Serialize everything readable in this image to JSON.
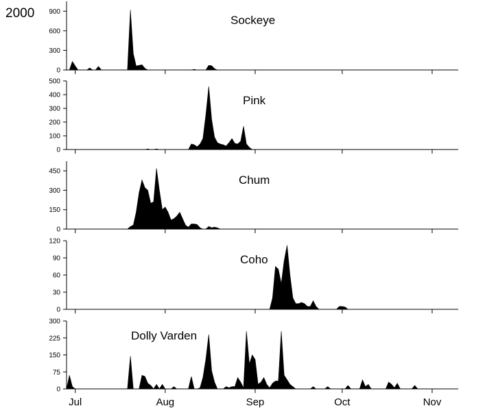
{
  "year_label": "2000",
  "colors": {
    "fill": "#000000",
    "axis": "#000000",
    "background": "#ffffff"
  },
  "chart_data": {
    "type": "area",
    "x_unit": "date (2000)",
    "x_range": [
      "2000-06-28",
      "2000-11-10"
    ],
    "x_ticks": [
      {
        "label": "Jul",
        "date": "2000-07-01"
      },
      {
        "label": "Aug",
        "date": "2000-08-01"
      },
      {
        "label": "Sep",
        "date": "2000-09-01"
      },
      {
        "label": "Oct",
        "date": "2000-10-01"
      },
      {
        "label": "Nov",
        "date": "2000-11-01"
      }
    ],
    "panels": [
      {
        "name": "Sockeye",
        "ylim": [
          0,
          1050
        ],
        "y_ticks": [
          0,
          300,
          600,
          900
        ],
        "points": [
          [
            "2000-06-29",
            0
          ],
          [
            "2000-06-30",
            130
          ],
          [
            "2000-07-01",
            60
          ],
          [
            "2000-07-02",
            0
          ],
          [
            "2000-07-05",
            0
          ],
          [
            "2000-07-06",
            30
          ],
          [
            "2000-07-07",
            0
          ],
          [
            "2000-07-08",
            0
          ],
          [
            "2000-07-09",
            55
          ],
          [
            "2000-07-10",
            0
          ],
          [
            "2000-07-19",
            0
          ],
          [
            "2000-07-20",
            920
          ],
          [
            "2000-07-21",
            250
          ],
          [
            "2000-07-22",
            60
          ],
          [
            "2000-07-23",
            70
          ],
          [
            "2000-07-24",
            80
          ],
          [
            "2000-07-25",
            25
          ],
          [
            "2000-07-26",
            0
          ],
          [
            "2000-08-10",
            0
          ],
          [
            "2000-08-11",
            10
          ],
          [
            "2000-08-12",
            0
          ],
          [
            "2000-08-15",
            0
          ],
          [
            "2000-08-16",
            70
          ],
          [
            "2000-08-17",
            65
          ],
          [
            "2000-08-18",
            20
          ],
          [
            "2000-08-19",
            0
          ]
        ]
      },
      {
        "name": "Pink",
        "ylim": [
          0,
          500
        ],
        "y_ticks": [
          0,
          100,
          200,
          300,
          400,
          500
        ],
        "points": [
          [
            "2000-07-25",
            0
          ],
          [
            "2000-07-26",
            5
          ],
          [
            "2000-07-27",
            0
          ],
          [
            "2000-07-28",
            0
          ],
          [
            "2000-07-29",
            5
          ],
          [
            "2000-07-30",
            0
          ],
          [
            "2000-08-09",
            0
          ],
          [
            "2000-08-10",
            40
          ],
          [
            "2000-08-11",
            35
          ],
          [
            "2000-08-12",
            20
          ],
          [
            "2000-08-13",
            40
          ],
          [
            "2000-08-14",
            80
          ],
          [
            "2000-08-15",
            250
          ],
          [
            "2000-08-16",
            460
          ],
          [
            "2000-08-17",
            220
          ],
          [
            "2000-08-18",
            90
          ],
          [
            "2000-08-19",
            50
          ],
          [
            "2000-08-20",
            40
          ],
          [
            "2000-08-21",
            35
          ],
          [
            "2000-08-22",
            25
          ],
          [
            "2000-08-23",
            50
          ],
          [
            "2000-08-24",
            80
          ],
          [
            "2000-08-25",
            45
          ],
          [
            "2000-08-26",
            40
          ],
          [
            "2000-08-27",
            60
          ],
          [
            "2000-08-28",
            170
          ],
          [
            "2000-08-29",
            40
          ],
          [
            "2000-08-30",
            15
          ],
          [
            "2000-08-31",
            0
          ]
        ]
      },
      {
        "name": "Chum",
        "ylim": [
          0,
          525
        ],
        "y_ticks": [
          0,
          150,
          300,
          450
        ],
        "points": [
          [
            "2000-07-19",
            0
          ],
          [
            "2000-07-20",
            20
          ],
          [
            "2000-07-21",
            30
          ],
          [
            "2000-07-22",
            130
          ],
          [
            "2000-07-23",
            280
          ],
          [
            "2000-07-24",
            380
          ],
          [
            "2000-07-25",
            320
          ],
          [
            "2000-07-26",
            300
          ],
          [
            "2000-07-27",
            200
          ],
          [
            "2000-07-28",
            210
          ],
          [
            "2000-07-29",
            470
          ],
          [
            "2000-07-30",
            300
          ],
          [
            "2000-07-31",
            150
          ],
          [
            "2000-08-01",
            170
          ],
          [
            "2000-08-02",
            130
          ],
          [
            "2000-08-03",
            70
          ],
          [
            "2000-08-04",
            80
          ],
          [
            "2000-08-05",
            100
          ],
          [
            "2000-08-06",
            130
          ],
          [
            "2000-08-07",
            80
          ],
          [
            "2000-08-08",
            30
          ],
          [
            "2000-08-09",
            15
          ],
          [
            "2000-08-10",
            40
          ],
          [
            "2000-08-11",
            40
          ],
          [
            "2000-08-12",
            35
          ],
          [
            "2000-08-13",
            10
          ],
          [
            "2000-08-14",
            0
          ],
          [
            "2000-08-15",
            0
          ],
          [
            "2000-08-16",
            20
          ],
          [
            "2000-08-17",
            10
          ],
          [
            "2000-08-18",
            15
          ],
          [
            "2000-08-19",
            10
          ],
          [
            "2000-08-20",
            0
          ]
        ]
      },
      {
        "name": "Coho",
        "ylim": [
          0,
          120
        ],
        "y_ticks": [
          0,
          30,
          60,
          90,
          120
        ],
        "points": [
          [
            "2000-09-06",
            0
          ],
          [
            "2000-09-07",
            20
          ],
          [
            "2000-09-08",
            75
          ],
          [
            "2000-09-09",
            70
          ],
          [
            "2000-09-10",
            45
          ],
          [
            "2000-09-11",
            85
          ],
          [
            "2000-09-12",
            112
          ],
          [
            "2000-09-13",
            60
          ],
          [
            "2000-09-14",
            20
          ],
          [
            "2000-09-15",
            10
          ],
          [
            "2000-09-16",
            10
          ],
          [
            "2000-09-17",
            12
          ],
          [
            "2000-09-18",
            10
          ],
          [
            "2000-09-19",
            5
          ],
          [
            "2000-09-20",
            5
          ],
          [
            "2000-09-21",
            15
          ],
          [
            "2000-09-22",
            5
          ],
          [
            "2000-09-23",
            0
          ],
          [
            "2000-09-29",
            0
          ],
          [
            "2000-09-30",
            5
          ],
          [
            "2000-10-01",
            5
          ],
          [
            "2000-10-02",
            4
          ],
          [
            "2000-10-03",
            0
          ]
        ]
      },
      {
        "name": "Dolly Varden",
        "ylim": [
          0,
          300
        ],
        "y_ticks": [
          0,
          75,
          150,
          225,
          300
        ],
        "points": [
          [
            "2000-06-28",
            0
          ],
          [
            "2000-06-29",
            60
          ],
          [
            "2000-06-30",
            10
          ],
          [
            "2000-07-01",
            0
          ],
          [
            "2000-07-19",
            0
          ],
          [
            "2000-07-20",
            145
          ],
          [
            "2000-07-21",
            0
          ],
          [
            "2000-07-23",
            0
          ],
          [
            "2000-07-24",
            60
          ],
          [
            "2000-07-25",
            55
          ],
          [
            "2000-07-26",
            25
          ],
          [
            "2000-07-27",
            15
          ],
          [
            "2000-07-28",
            0
          ],
          [
            "2000-07-29",
            20
          ],
          [
            "2000-07-30",
            0
          ],
          [
            "2000-07-31",
            20
          ],
          [
            "2000-08-01",
            0
          ],
          [
            "2000-08-03",
            0
          ],
          [
            "2000-08-04",
            10
          ],
          [
            "2000-08-05",
            0
          ],
          [
            "2000-08-09",
            0
          ],
          [
            "2000-08-10",
            55
          ],
          [
            "2000-08-11",
            0
          ],
          [
            "2000-08-12",
            0
          ],
          [
            "2000-08-13",
            5
          ],
          [
            "2000-08-14",
            50
          ],
          [
            "2000-08-15",
            130
          ],
          [
            "2000-08-16",
            240
          ],
          [
            "2000-08-17",
            80
          ],
          [
            "2000-08-18",
            30
          ],
          [
            "2000-08-19",
            0
          ],
          [
            "2000-08-21",
            0
          ],
          [
            "2000-08-22",
            10
          ],
          [
            "2000-08-23",
            5
          ],
          [
            "2000-08-24",
            10
          ],
          [
            "2000-08-25",
            10
          ],
          [
            "2000-08-26",
            50
          ],
          [
            "2000-08-27",
            30
          ],
          [
            "2000-08-28",
            5
          ],
          [
            "2000-08-29",
            255
          ],
          [
            "2000-08-30",
            110
          ],
          [
            "2000-08-31",
            150
          ],
          [
            "2000-09-01",
            130
          ],
          [
            "2000-09-02",
            20
          ],
          [
            "2000-09-03",
            30
          ],
          [
            "2000-09-04",
            50
          ],
          [
            "2000-09-05",
            20
          ],
          [
            "2000-09-06",
            5
          ],
          [
            "2000-09-07",
            25
          ],
          [
            "2000-09-08",
            35
          ],
          [
            "2000-09-09",
            35
          ],
          [
            "2000-09-10",
            255
          ],
          [
            "2000-09-11",
            60
          ],
          [
            "2000-09-12",
            40
          ],
          [
            "2000-09-13",
            20
          ],
          [
            "2000-09-14",
            10
          ],
          [
            "2000-09-15",
            0
          ],
          [
            "2000-09-20",
            0
          ],
          [
            "2000-09-21",
            10
          ],
          [
            "2000-09-22",
            0
          ],
          [
            "2000-09-25",
            0
          ],
          [
            "2000-09-26",
            10
          ],
          [
            "2000-09-27",
            0
          ],
          [
            "2000-10-02",
            0
          ],
          [
            "2000-10-03",
            15
          ],
          [
            "2000-10-04",
            0
          ],
          [
            "2000-10-07",
            0
          ],
          [
            "2000-10-08",
            40
          ],
          [
            "2000-10-09",
            10
          ],
          [
            "2000-10-10",
            20
          ],
          [
            "2000-10-11",
            0
          ],
          [
            "2000-10-16",
            0
          ],
          [
            "2000-10-17",
            30
          ],
          [
            "2000-10-18",
            20
          ],
          [
            "2000-10-19",
            5
          ],
          [
            "2000-10-20",
            25
          ],
          [
            "2000-10-21",
            0
          ],
          [
            "2000-10-25",
            0
          ],
          [
            "2000-10-26",
            15
          ],
          [
            "2000-10-27",
            0
          ]
        ]
      }
    ]
  }
}
